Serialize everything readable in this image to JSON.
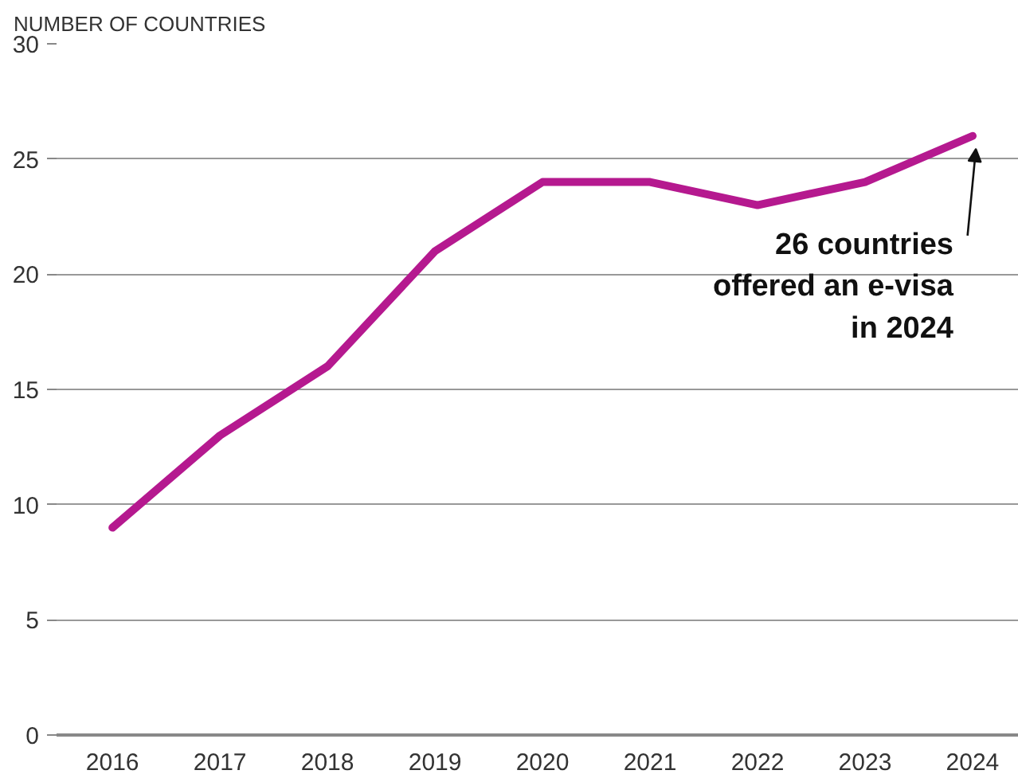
{
  "chart_data": {
    "type": "line",
    "ylabel": "NUMBER OF COUNTRIES",
    "x": [
      2016,
      2017,
      2018,
      2019,
      2020,
      2021,
      2022,
      2023,
      2024
    ],
    "series": [
      {
        "color": "#b5198f",
        "values": [
          9,
          13,
          16,
          21,
          24,
          24,
          23,
          24,
          26
        ]
      }
    ],
    "xlim": [
      2015.48,
      2024.43
    ],
    "xticks": [
      2016,
      2017,
      2018,
      2019,
      2020,
      2021,
      2022,
      2023,
      2024
    ],
    "ylim": [
      0,
      30
    ],
    "yticks": [
      0,
      5,
      10,
      15,
      20,
      25,
      30
    ],
    "grid": "y",
    "annotations": [
      {
        "text": "26 countries\noffered an e-visa\nin 2024",
        "x": 2024,
        "y": 26
      }
    ]
  }
}
